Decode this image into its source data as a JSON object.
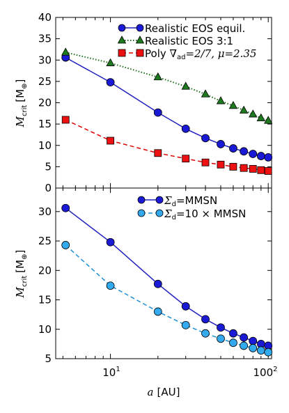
{
  "chart_data": [
    {
      "type": "line",
      "xscale": "log",
      "xlim": [
        4.5,
        105
      ],
      "ylim": [
        0,
        40
      ],
      "yticks": [
        0,
        5,
        10,
        15,
        20,
        25,
        30,
        35,
        40
      ],
      "ylabel_base": "M",
      "ylabel_sub": "crit",
      "ylabel_unit": "[M",
      "ylabel_unit_sub": "⊕",
      "ylabel_close": "]",
      "legend_position": "top-right",
      "x": [
        5.2,
        10,
        20,
        30,
        40,
        50,
        60,
        70,
        80,
        90,
        100
      ],
      "series": [
        {
          "name": "Realistic EOS equil.",
          "marker": "circle",
          "line": "solid",
          "color": "#1f1fbf",
          "fill": "#1a1ad6",
          "values": [
            30.6,
            24.8,
            17.7,
            13.9,
            11.7,
            10.3,
            9.3,
            8.6,
            8.0,
            7.5,
            7.2
          ]
        },
        {
          "name": "Realistic EOS 3:1",
          "marker": "triangle",
          "line": "dotted",
          "color": "#1b6b1b",
          "fill": "#1e7a1e",
          "values": [
            31.8,
            29.3,
            26.0,
            23.8,
            22.0,
            20.4,
            19.3,
            18.2,
            17.3,
            16.4,
            15.8
          ]
        },
        {
          "name": "Poly ∇ad=2/7, μ=2.35",
          "marker": "square",
          "line": "dashed",
          "color": "#dd0000",
          "fill": "#ee1111",
          "values": [
            16.0,
            11.1,
            8.2,
            6.9,
            6.0,
            5.5,
            5.0,
            4.7,
            4.5,
            4.2,
            4.0
          ]
        }
      ],
      "legend_labels": {
        "s0": "Realistic EOS equil.",
        "s1": "Realistic EOS 3:1",
        "s2_prefix": "Poly ",
        "s2_nabla": "∇",
        "s2_nabla_sub": "ad",
        "s2_eq": "=2/7, ",
        "s2_mu": "μ",
        "s2_mu_val": "=2.35"
      }
    },
    {
      "type": "line",
      "xscale": "log",
      "xlim": [
        4.5,
        105
      ],
      "ylim": [
        5,
        34
      ],
      "yticks": [
        5,
        10,
        15,
        20,
        25,
        30
      ],
      "xticks": [
        10,
        100
      ],
      "xtick_labels": [
        "10",
        "100"
      ],
      "xtick_exponent": "1",
      "xtick_exponent2": "2",
      "xlabel_var": "a",
      "xlabel_unit": "[AU]",
      "ylabel_base": "M",
      "ylabel_sub": "crit",
      "ylabel_unit": "[M",
      "ylabel_unit_sub": "⊕",
      "ylabel_close": "]",
      "legend_position": "top-right",
      "x": [
        5.2,
        10,
        20,
        30,
        40,
        50,
        60,
        70,
        80,
        90,
        100
      ],
      "series": [
        {
          "name": "Σd=MMSN",
          "marker": "circle",
          "line": "solid",
          "color": "#1f1fbf",
          "fill": "#1a1ad6",
          "values": [
            30.6,
            24.8,
            17.7,
            13.9,
            11.7,
            10.3,
            9.3,
            8.6,
            8.0,
            7.5,
            7.2
          ]
        },
        {
          "name": "Σd=10 × MMSN",
          "marker": "circle",
          "line": "dashed",
          "color": "#1a8fd6",
          "fill": "#33aaee",
          "values": [
            24.3,
            17.4,
            13.0,
            10.7,
            9.3,
            8.4,
            7.7,
            7.2,
            6.8,
            6.4,
            6.1
          ]
        }
      ],
      "legend_labels": {
        "s0_sigma": "Σ",
        "s0_sub": "d",
        "s0_rest": "=MMSN",
        "s1_sigma": "Σ",
        "s1_sub": "d",
        "s1_rest": "=10 × MMSN"
      }
    }
  ]
}
